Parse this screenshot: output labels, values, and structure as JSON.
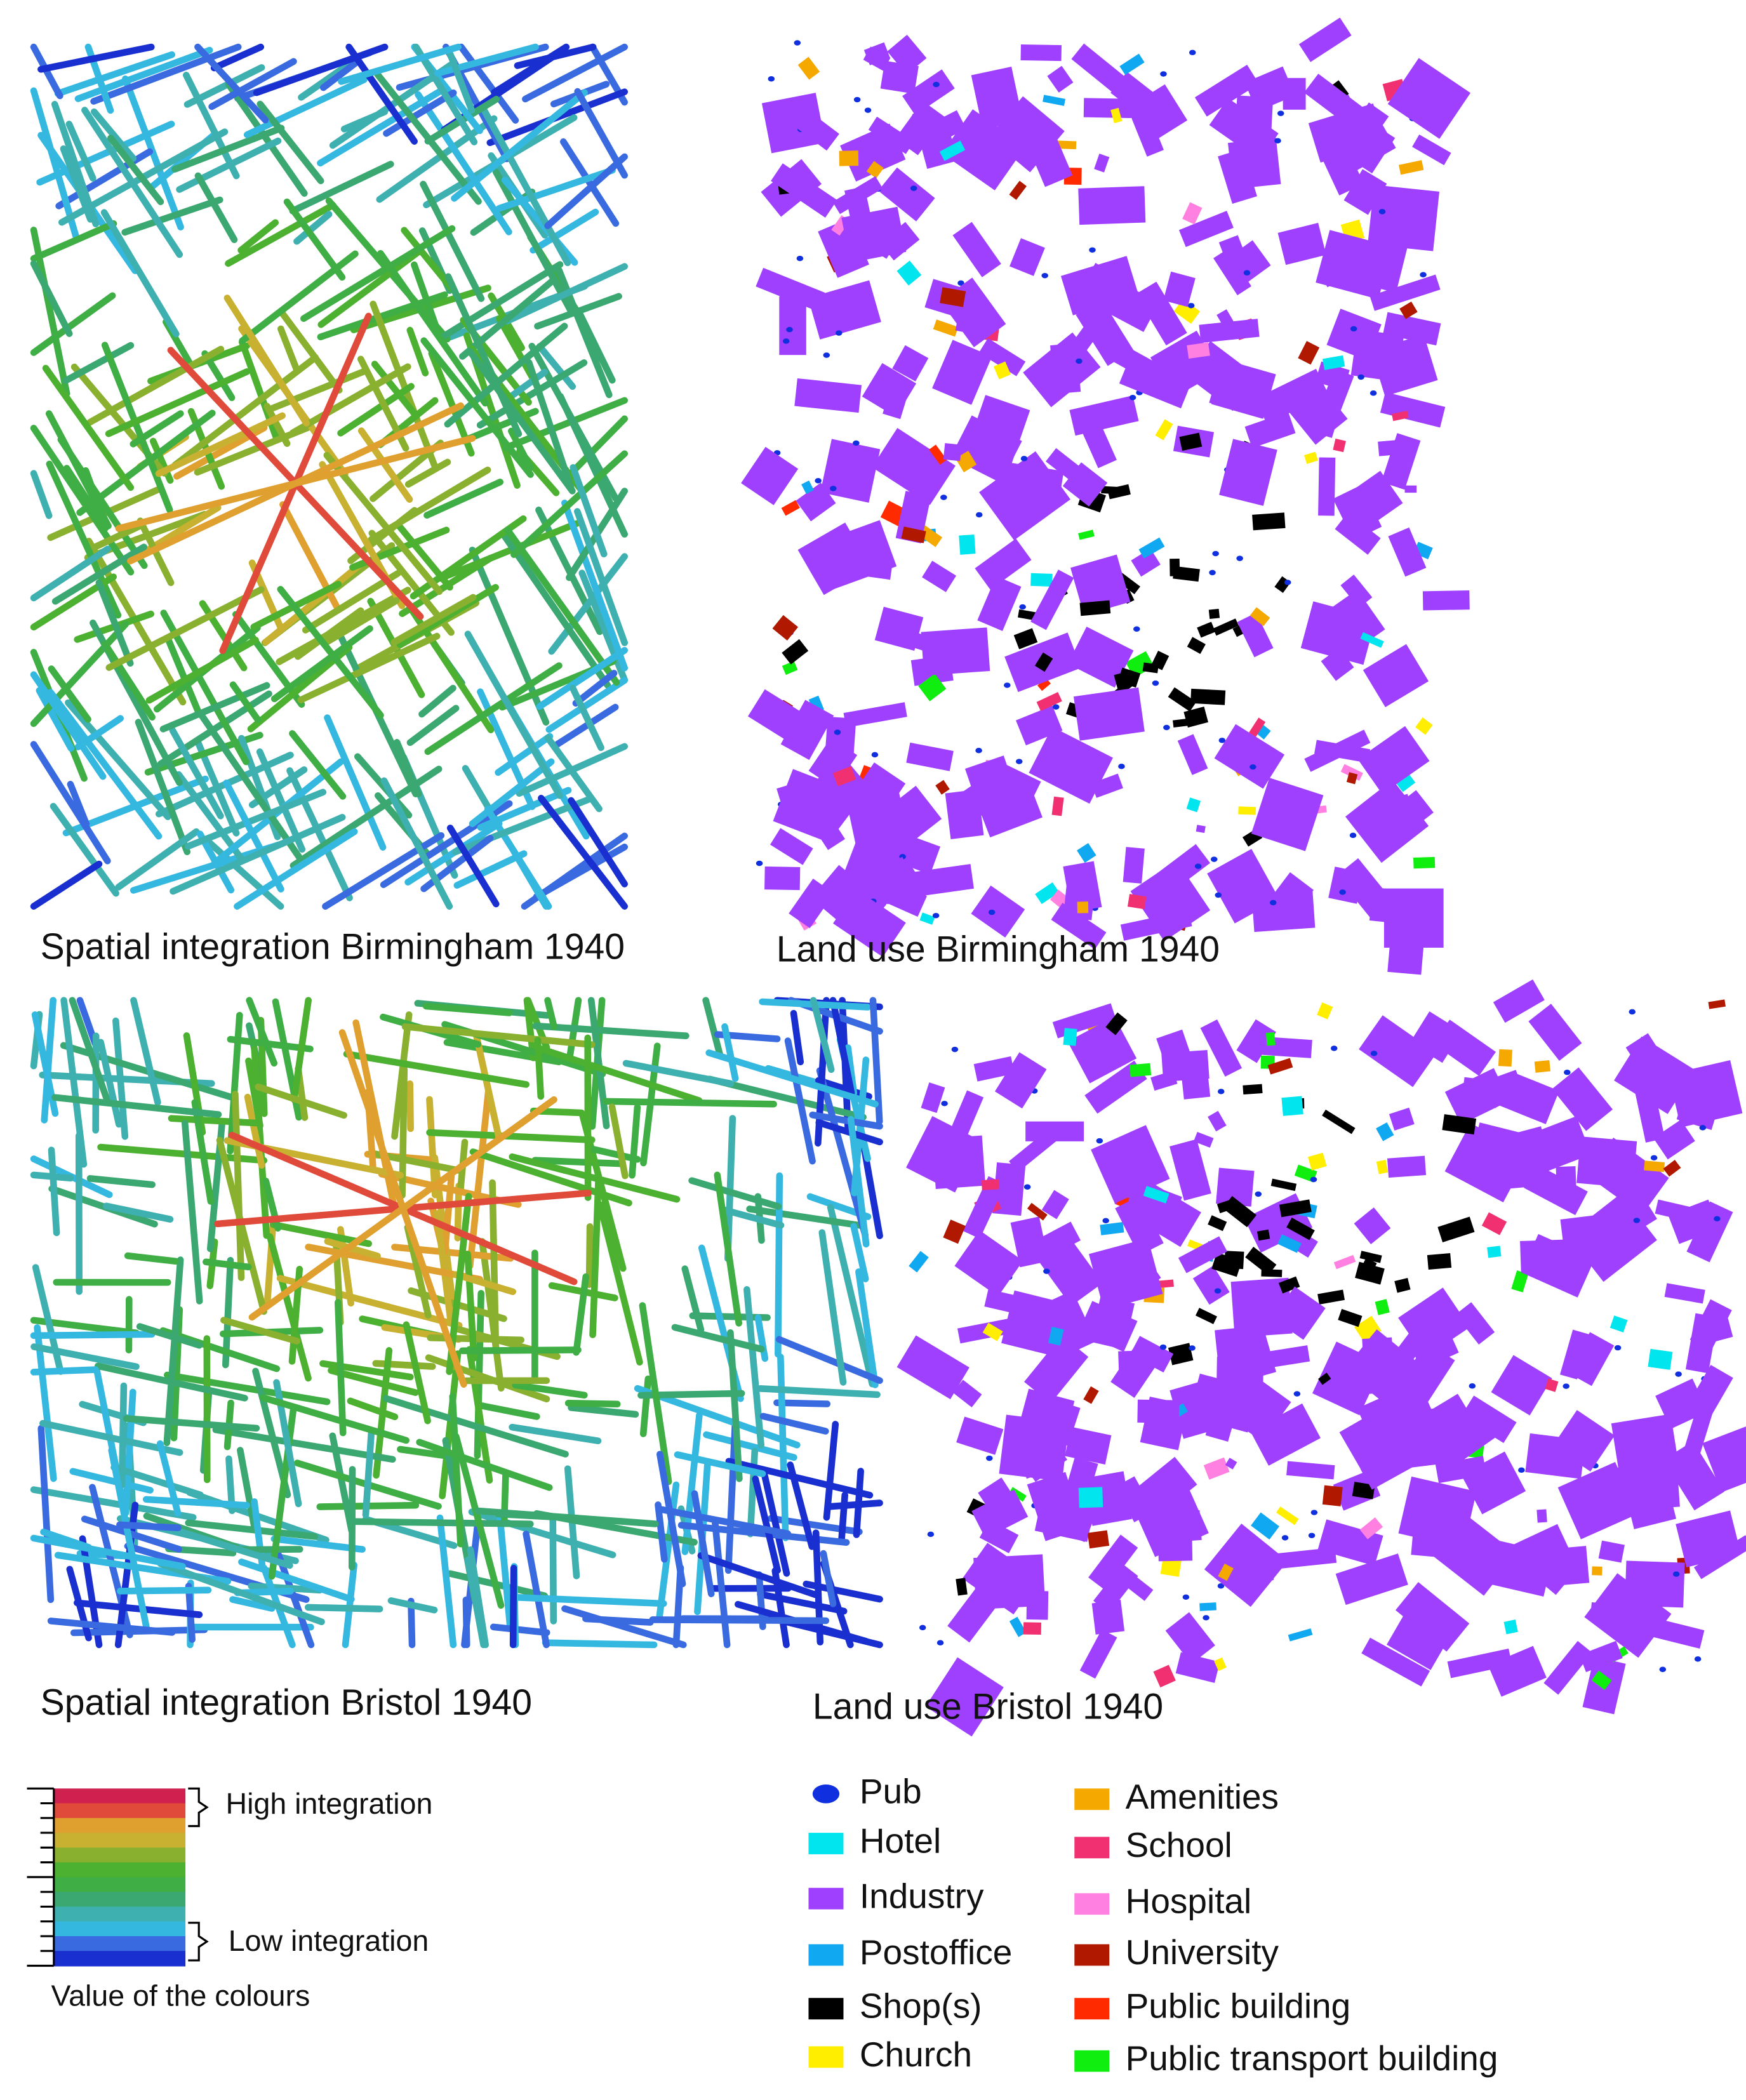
{
  "panels": [
    {
      "caption": "Spatial integration Birmingham 1940"
    },
    {
      "caption": "Land use Birmingham 1940"
    },
    {
      "caption": "Spatial integration Bristol 1940"
    },
    {
      "caption": "Land use Bristol 1940"
    }
  ],
  "integration_legend": {
    "high": "High integration",
    "low": "Low integration",
    "caption": "Value of the colours"
  },
  "land_use_legend": [
    {
      "label": "Pub",
      "color": "#1030e0"
    },
    {
      "label": "Hotel",
      "color": "#00e5ee"
    },
    {
      "label": "Industry",
      "color": "#a040ff"
    },
    {
      "label": "Postoffice",
      "color": "#10a8f0"
    },
    {
      "label": "Shop(s)",
      "color": "#000000"
    },
    {
      "label": "Church",
      "color": "#ffee00"
    },
    {
      "label": "Amenities",
      "color": "#f5a800"
    },
    {
      "label": "School",
      "color": "#f03070"
    },
    {
      "label": "Hospital",
      "color": "#ff80e0"
    },
    {
      "label": "University",
      "color": "#b01800"
    },
    {
      "label": "Public building",
      "color": "#ff2a00"
    },
    {
      "label": "Public transport building",
      "color": "#10ee10"
    }
  ]
}
